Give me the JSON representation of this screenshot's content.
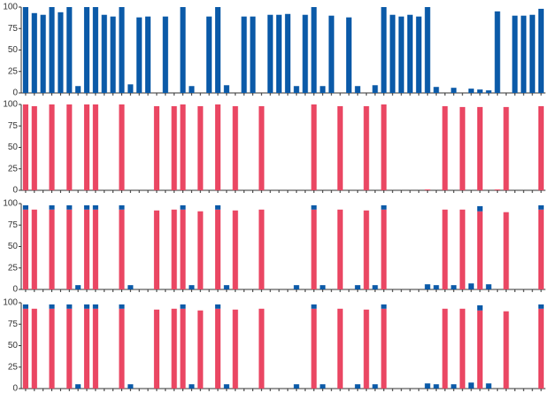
{
  "chart_data": [
    {
      "type": "bar",
      "color": "#0b5aa8",
      "ylim": [
        0,
        100
      ],
      "yticks": [
        0,
        25,
        50,
        75,
        100
      ],
      "categories": [
        null,
        null,
        null,
        null,
        null,
        null,
        null,
        null,
        null,
        null,
        null,
        null,
        null,
        null,
        null,
        null,
        null,
        null,
        null,
        null,
        null,
        null,
        null,
        null,
        null,
        null,
        null,
        null,
        null,
        null,
        null,
        null,
        null,
        null,
        null,
        null,
        null,
        null,
        null,
        null,
        null,
        null,
        null,
        null,
        null,
        null,
        null,
        null,
        null,
        null,
        null,
        null,
        null,
        null,
        null,
        null,
        null,
        null,
        null,
        null
      ],
      "values": [
        100,
        93,
        91,
        100,
        94,
        100,
        8,
        100,
        100,
        91,
        89,
        100,
        10,
        88,
        89,
        null,
        89,
        null,
        100,
        8,
        null,
        89,
        100,
        9,
        null,
        89,
        89,
        null,
        91,
        91,
        92,
        8,
        91,
        100,
        8,
        90,
        null,
        88,
        8,
        null,
        9,
        100,
        91,
        89,
        91,
        89,
        100,
        7,
        null,
        6,
        null,
        5,
        4,
        3,
        95,
        null,
        90,
        90,
        91,
        98
      ]
    },
    {
      "type": "bar",
      "color": "#ea4763",
      "ylim": [
        0,
        100
      ],
      "yticks": [
        0,
        25,
        50,
        75,
        100
      ],
      "categories": [
        null,
        null,
        null,
        null,
        null,
        null,
        null,
        null,
        null,
        null,
        null,
        null,
        null,
        null,
        null,
        null,
        null,
        null,
        null,
        null,
        null,
        null,
        null,
        null,
        null,
        null,
        null,
        null,
        null,
        null,
        null,
        null,
        null,
        null,
        null,
        null,
        null,
        null,
        null,
        null,
        null,
        null,
        null,
        null,
        null,
        null,
        null,
        null,
        null,
        null,
        null,
        null,
        null,
        null,
        null,
        null,
        null,
        null,
        null,
        null
      ],
      "values": [
        100,
        98,
        null,
        100,
        null,
        100,
        null,
        100,
        100,
        null,
        null,
        100,
        null,
        null,
        null,
        98,
        null,
        98,
        100,
        null,
        98,
        null,
        100,
        null,
        98,
        null,
        null,
        98,
        null,
        null,
        null,
        null,
        null,
        100,
        null,
        null,
        98,
        null,
        null,
        98,
        null,
        100,
        null,
        null,
        null,
        null,
        1,
        null,
        98,
        null,
        97,
        null,
        97,
        null,
        1,
        97,
        null,
        null,
        null,
        98
      ]
    },
    {
      "type": "stacked_bar",
      "ylim": [
        0,
        100
      ],
      "yticks": [
        0,
        25,
        50,
        75,
        100
      ],
      "categories": [
        null,
        null,
        null,
        null,
        null,
        null,
        null,
        null,
        null,
        null,
        null,
        null,
        null,
        null,
        null,
        null,
        null,
        null,
        null,
        null,
        null,
        null,
        null,
        null,
        null,
        null,
        null,
        null,
        null,
        null,
        null,
        null,
        null,
        null,
        null,
        null,
        null,
        null,
        null,
        null,
        null,
        null,
        null,
        null,
        null,
        null,
        null,
        null,
        null,
        null,
        null,
        null,
        null,
        null,
        null,
        null,
        null,
        null,
        null,
        null
      ],
      "series": [
        {
          "color": "#ea4763",
          "values": [
            93,
            93,
            null,
            93,
            null,
            93,
            null,
            93,
            93,
            null,
            null,
            93,
            null,
            null,
            null,
            92,
            null,
            93,
            93,
            null,
            91,
            null,
            93,
            null,
            92,
            null,
            null,
            93,
            null,
            null,
            null,
            null,
            null,
            93,
            null,
            null,
            93,
            null,
            null,
            92,
            null,
            93,
            null,
            null,
            null,
            null,
            null,
            null,
            93,
            null,
            93,
            null,
            91,
            null,
            null,
            90,
            null,
            null,
            null,
            93
          ]
        },
        {
          "color": "#0b5aa8",
          "values": [
            5,
            null,
            null,
            5,
            null,
            5,
            5,
            5,
            5,
            null,
            null,
            5,
            5,
            null,
            null,
            null,
            null,
            null,
            5,
            5,
            null,
            null,
            5,
            5,
            null,
            null,
            null,
            null,
            null,
            null,
            null,
            5,
            null,
            5,
            5,
            null,
            null,
            null,
            5,
            null,
            5,
            5,
            null,
            null,
            null,
            null,
            6,
            5,
            null,
            5,
            null,
            7,
            6,
            6,
            null,
            null,
            null,
            null,
            null,
            5
          ]
        }
      ]
    },
    {
      "type": "stacked_bar",
      "ylim": [
        0,
        100
      ],
      "yticks": [
        0,
        25,
        50,
        75,
        100
      ],
      "categories": [
        null,
        null,
        null,
        null,
        null,
        null,
        null,
        null,
        null,
        null,
        null,
        null,
        null,
        null,
        null,
        null,
        null,
        null,
        null,
        null,
        null,
        null,
        null,
        null,
        null,
        null,
        null,
        null,
        null,
        null,
        null,
        null,
        null,
        null,
        null,
        null,
        null,
        null,
        null,
        null,
        null,
        null,
        null,
        null,
        null,
        null,
        null,
        null,
        null,
        null,
        null,
        null,
        null,
        null,
        null,
        null,
        null,
        null,
        null,
        null
      ],
      "series": [
        {
          "color": "#ea4763",
          "values": [
            93,
            93,
            null,
            93,
            null,
            93,
            null,
            93,
            93,
            null,
            null,
            93,
            null,
            null,
            null,
            92,
            null,
            93,
            93,
            null,
            91,
            null,
            93,
            null,
            92,
            null,
            null,
            93,
            null,
            null,
            null,
            null,
            null,
            93,
            null,
            null,
            93,
            null,
            null,
            92,
            null,
            93,
            null,
            null,
            null,
            null,
            null,
            null,
            93,
            null,
            93,
            null,
            91,
            null,
            null,
            90,
            null,
            null,
            null,
            93
          ]
        },
        {
          "color": "#0b5aa8",
          "values": [
            5,
            null,
            null,
            5,
            null,
            5,
            5,
            5,
            5,
            null,
            null,
            5,
            5,
            null,
            null,
            null,
            null,
            null,
            5,
            5,
            null,
            null,
            5,
            5,
            null,
            null,
            null,
            null,
            null,
            null,
            null,
            5,
            null,
            5,
            5,
            null,
            null,
            null,
            5,
            null,
            5,
            5,
            null,
            null,
            null,
            null,
            6,
            5,
            null,
            5,
            null,
            7,
            6,
            6,
            null,
            null,
            null,
            null,
            null,
            5
          ]
        }
      ]
    }
  ]
}
